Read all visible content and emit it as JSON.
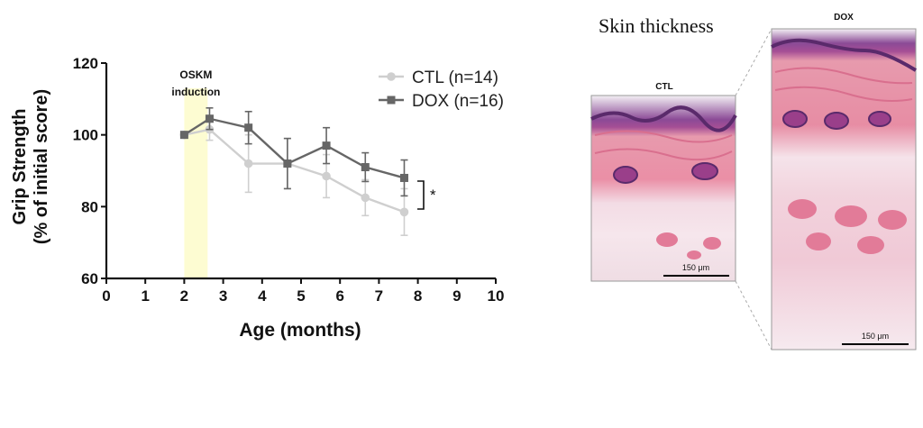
{
  "chart_data": {
    "type": "line",
    "xlabel": "Age (months)",
    "ylabel_line1": "Grip Strength",
    "ylabel_line2": "(% of initial score)",
    "xlim": [
      0,
      10
    ],
    "ylim": [
      60,
      120
    ],
    "x_ticks": [
      0,
      1,
      2,
      3,
      4,
      5,
      6,
      7,
      8,
      9,
      10
    ],
    "y_ticks": [
      60,
      80,
      100,
      120
    ],
    "highlight": {
      "label_line1": "OSKM",
      "label_line2": "induction",
      "x_range": [
        2.0,
        2.6
      ],
      "color": "#fdfcd2"
    },
    "significance": "*",
    "series": [
      {
        "name": "CTL (n=14)",
        "color": "#cfcfcf",
        "marker": "circle",
        "points": [
          {
            "x": 2.0,
            "y": 100,
            "err": 0
          },
          {
            "x": 2.65,
            "y": 101.5,
            "err": 3
          },
          {
            "x": 3.65,
            "y": 92,
            "err": 8
          },
          {
            "x": 4.65,
            "y": 92,
            "err": 7
          },
          {
            "x": 5.65,
            "y": 88.5,
            "err": 6
          },
          {
            "x": 6.65,
            "y": 82.5,
            "err": 5
          },
          {
            "x": 7.65,
            "y": 78.5,
            "err": 6.5
          }
        ]
      },
      {
        "name": "DOX (n=16)",
        "color": "#666666",
        "marker": "square",
        "points": [
          {
            "x": 2.0,
            "y": 100,
            "err": 0
          },
          {
            "x": 2.65,
            "y": 104.5,
            "err": 3
          },
          {
            "x": 3.65,
            "y": 102,
            "err": 4.5
          },
          {
            "x": 4.65,
            "y": 92,
            "err": 7
          },
          {
            "x": 5.65,
            "y": 97,
            "err": 5
          },
          {
            "x": 6.65,
            "y": 91,
            "err": 4
          },
          {
            "x": 7.65,
            "y": 88,
            "err": 5
          }
        ]
      }
    ]
  },
  "histology": {
    "title": "Skin thickness",
    "ctl_label": "CTL",
    "dox_label": "DOX",
    "scale_ctl": "150 μm",
    "scale_dox": "150 μm"
  }
}
